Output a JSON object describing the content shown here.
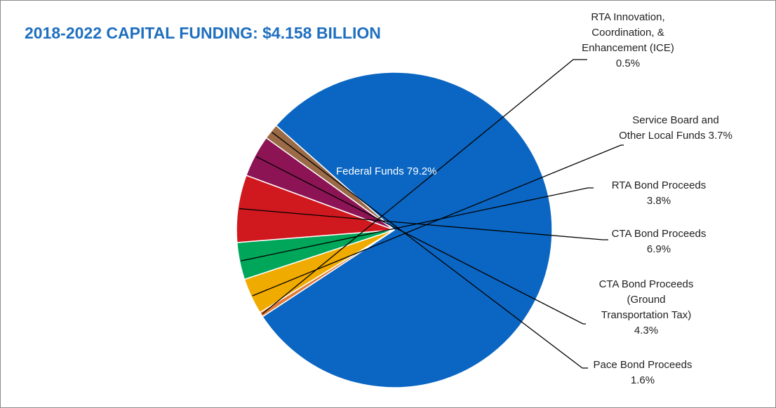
{
  "title": "2018-2022 CAPITAL FUNDING:  $4.158 BILLION",
  "colors": {
    "title": "#1f6fbf",
    "federal": "#0a66c2",
    "rta_ice": "#e07b39",
    "service_board": "#f0ab00",
    "rta_bond": "#00a65a",
    "cta_bond": "#d0191e",
    "cta_bond_gtt": "#8c1455",
    "pace_bond": "#9b6a47"
  },
  "chart_data": {
    "type": "pie",
    "title": "2018-2022 CAPITAL FUNDING:  $4.158 BILLION",
    "slices": [
      {
        "name": "Federal Funds",
        "value": 79.2,
        "value_label": "79.2%",
        "label_lines": [
          "Federal Funds 79.2%"
        ],
        "color_key": "federal"
      },
      {
        "name": "RTA Innovation, Coordination, & Enhancement (ICE)",
        "value": 0.5,
        "value_label": "0.5%",
        "label_lines": [
          "RTA Innovation,",
          "Coordination, &",
          "Enhancement (ICE)",
          "0.5%"
        ],
        "color_key": "rta_ice"
      },
      {
        "name": "Service Board and Other Local Funds",
        "value": 3.7,
        "value_label": "3.7%",
        "label_lines": [
          "Service Board and",
          "Other Local Funds 3.7%"
        ],
        "color_key": "service_board"
      },
      {
        "name": "RTA Bond Proceeds",
        "value": 3.8,
        "value_label": "3.8%",
        "label_lines": [
          "RTA Bond Proceeds",
          "3.8%"
        ],
        "color_key": "rta_bond"
      },
      {
        "name": "CTA Bond Proceeds",
        "value": 6.9,
        "value_label": "6.9%",
        "label_lines": [
          "CTA Bond Proceeds",
          "6.9%"
        ],
        "color_key": "cta_bond"
      },
      {
        "name": "CTA Bond Proceeds (Ground Transportation Tax)",
        "value": 4.3,
        "value_label": "4.3%",
        "label_lines": [
          "CTA Bond Proceeds",
          "(Ground",
          "Transportation Tax)",
          "4.3%"
        ],
        "color_key": "cta_bond_gtt"
      },
      {
        "name": "Pace Bond Proceeds",
        "value": 1.6,
        "value_label": "1.6%",
        "label_lines": [
          "Pace Bond Proceeds",
          "1.6%"
        ],
        "color_key": "pace_bond"
      }
    ]
  }
}
